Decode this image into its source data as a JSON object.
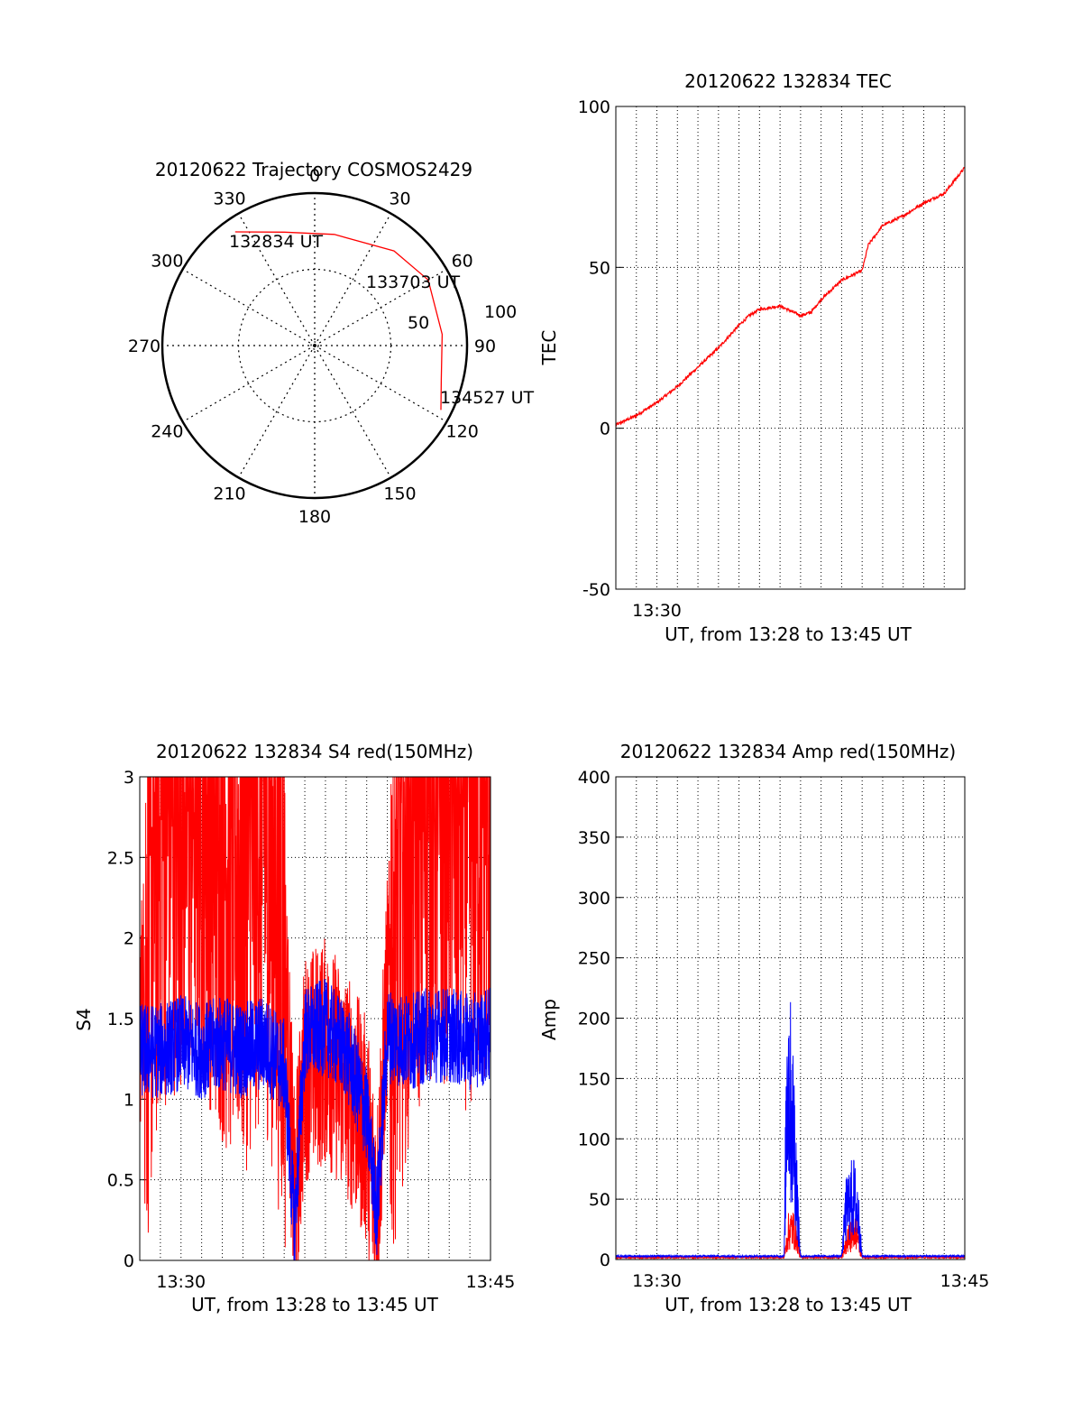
{
  "chart_data": [
    {
      "type": "polar",
      "title": "20120622 Trajectory COSMOS2429",
      "azimuth_ticks": [
        "0",
        "30",
        "60",
        "90",
        "120",
        "150",
        "180",
        "210",
        "240",
        "270",
        "300",
        "330"
      ],
      "radial_tick_labels": [
        "50",
        "100"
      ],
      "radial_range": [
        0,
        100
      ],
      "trajectory": {
        "color": "#ff0000",
        "points": [
          {
            "azimuth_deg": 325,
            "zenith": 91
          },
          {
            "azimuth_deg": 345,
            "zenith": 77
          },
          {
            "azimuth_deg": 10,
            "zenith": 74
          },
          {
            "azimuth_deg": 40,
            "zenith": 81
          },
          {
            "azimuth_deg": 60,
            "zenith": 86
          },
          {
            "azimuth_deg": 85,
            "zenith": 84
          },
          {
            "azimuth_deg": 105,
            "zenith": 86
          },
          {
            "azimuth_deg": 117,
            "zenith": 93
          }
        ]
      },
      "annotations": [
        "132834 UT",
        "133703 UT",
        "134527 UT"
      ],
      "grid": true
    },
    {
      "type": "line",
      "title": "20120622 132834 TEC",
      "ylabel": "TEC",
      "xlabel": "UT, from 13:28 to 13:45 UT",
      "x_tick_labels": [
        "13:30"
      ],
      "xlim": [
        "13:28",
        "13:45"
      ],
      "ylim": [
        -50,
        100
      ],
      "y_ticks": [
        -50,
        0,
        50,
        100
      ],
      "grid": true,
      "series": [
        {
          "color": "#ff0000",
          "x_minutes": [
            0,
            1,
            2,
            3,
            4,
            5,
            6,
            6.5,
            7,
            8,
            9,
            9.5,
            10,
            11,
            12,
            12.3,
            13,
            14,
            14.5,
            15,
            16,
            17
          ],
          "values": [
            1,
            4,
            8,
            13,
            19,
            25,
            32,
            35,
            37,
            38,
            35,
            36,
            40,
            46,
            49,
            57,
            63,
            66,
            68,
            70,
            73,
            81
          ]
        }
      ]
    },
    {
      "type": "line",
      "title": "20120622 132834 S4 red(150MHz)",
      "ylabel": "S4",
      "xlabel": "UT, from 13:28 to 13:45 UT",
      "x_tick_labels": [
        "13:30",
        "13:45"
      ],
      "xlim": [
        "13:28",
        "13:45"
      ],
      "ylim": [
        0,
        3
      ],
      "y_ticks": [
        0,
        0.5,
        1,
        1.5,
        2,
        2.5,
        3
      ],
      "grid": true,
      "series": [
        {
          "color": "#ff0000",
          "x_minutes": [
            0,
            1,
            2,
            3,
            4,
            5,
            6,
            7,
            7.5,
            8,
            9,
            10,
            11,
            11.5,
            12,
            13,
            14,
            15,
            16,
            17
          ],
          "values": [
            1.5,
            2.8,
            3.0,
            3.0,
            2.6,
            2.4,
            2.8,
            2.0,
            0.3,
            1.2,
            1.3,
            1.1,
            0.8,
            0.3,
            1.7,
            2.6,
            3.0,
            3.0,
            2.8,
            3.0
          ]
        },
        {
          "color": "#0000ff",
          "x_minutes": [
            0,
            1,
            2,
            3,
            4,
            5,
            6,
            7,
            7.5,
            8,
            9,
            10,
            11,
            11.5,
            12,
            13,
            14,
            15,
            16,
            17
          ],
          "values": [
            1.3,
            1.3,
            1.35,
            1.3,
            1.35,
            1.3,
            1.35,
            1.2,
            0.2,
            1.4,
            1.45,
            1.3,
            0.9,
            0.3,
            1.4,
            1.35,
            1.4,
            1.4,
            1.35,
            1.4
          ]
        }
      ]
    },
    {
      "type": "line",
      "title": "20120622 132834 Amp red(150MHz)",
      "ylabel": "Amp",
      "xlabel": "UT, from 13:28 to 13:45 UT",
      "x_tick_labels": [
        "13:30",
        "13:45"
      ],
      "xlim": [
        "13:28",
        "13:45"
      ],
      "ylim": [
        0,
        400
      ],
      "y_ticks": [
        0,
        50,
        100,
        150,
        200,
        250,
        300,
        350,
        400
      ],
      "grid": true,
      "series": [
        {
          "color": "#ff0000",
          "x_minutes": [
            0,
            8.2,
            8.4,
            8.6,
            8.8,
            9.0,
            11.0,
            11.3,
            11.6,
            11.8,
            12.0,
            17
          ],
          "values": [
            1,
            1,
            35,
            40,
            30,
            1,
            1,
            25,
            35,
            30,
            1,
            1
          ]
        },
        {
          "color": "#0000ff",
          "x_minutes": [
            0,
            8.2,
            8.35,
            8.5,
            8.7,
            8.9,
            9.0,
            11.0,
            11.2,
            11.4,
            11.6,
            11.8,
            12.0,
            17
          ],
          "values": [
            2,
            2,
            252,
            200,
            150,
            40,
            2,
            2,
            60,
            75,
            78,
            60,
            2,
            2
          ]
        }
      ]
    }
  ]
}
